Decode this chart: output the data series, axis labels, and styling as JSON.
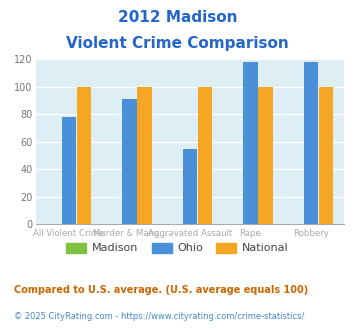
{
  "title_line1": "2012 Madison",
  "title_line2": "Violent Crime Comparison",
  "madison_values": [
    0,
    0,
    0,
    0,
    0
  ],
  "ohio_values": [
    78,
    91,
    55,
    118,
    118
  ],
  "national_values": [
    100,
    100,
    100,
    100,
    100
  ],
  "madison_color": "#7fc241",
  "ohio_color": "#4a90d9",
  "national_color": "#f5a623",
  "top_labels": [
    "",
    "Murder & Mans...",
    "",
    "Rape",
    ""
  ],
  "bottom_labels": [
    "All Violent Crime",
    "",
    "Aggravated Assault",
    "",
    "Robbery"
  ],
  "ylim": [
    0,
    120
  ],
  "yticks": [
    0,
    20,
    40,
    60,
    80,
    100,
    120
  ],
  "background_color": "#ddeef5",
  "title_color": "#2266cc",
  "xlabel_color": "#aaaaaa",
  "ylabel_color": "#777777",
  "footnote1": "Compared to U.S. average. (U.S. average equals 100)",
  "footnote2": "© 2025 CityRating.com - https://www.cityrating.com/crime-statistics/",
  "footnote1_color": "#cc6600",
  "footnote2_color": "#4488cc"
}
